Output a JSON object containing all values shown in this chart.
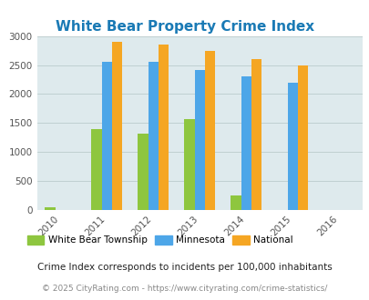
{
  "title": "White Bear Property Crime Index",
  "years": [
    2010,
    2011,
    2012,
    2013,
    2014,
    2015,
    2016
  ],
  "bar_years": [
    2010,
    2011,
    2012,
    2013,
    2014,
    2015
  ],
  "wbt": [
    50,
    1400,
    1320,
    1570,
    250,
    0
  ],
  "mn": [
    0,
    2550,
    2560,
    2420,
    2300,
    2200
  ],
  "national": [
    0,
    2900,
    2850,
    2750,
    2600,
    2490
  ],
  "wbt_2010": 50,
  "ylim": [
    0,
    3000
  ],
  "yticks": [
    0,
    500,
    1000,
    1500,
    2000,
    2500,
    3000
  ],
  "color_wbt": "#8ec63f",
  "color_mn": "#4da6e8",
  "color_nat": "#f5a623",
  "bg_color": "#deeaed",
  "title_color": "#1a7ab5",
  "label_wbt": "White Bear Township",
  "label_mn": "Minnesota",
  "label_nat": "National",
  "footnote1": "Crime Index corresponds to incidents per 100,000 inhabitants",
  "footnote2": "© 2025 CityRating.com - https://www.cityrating.com/crime-statistics/",
  "bar_width": 0.22
}
